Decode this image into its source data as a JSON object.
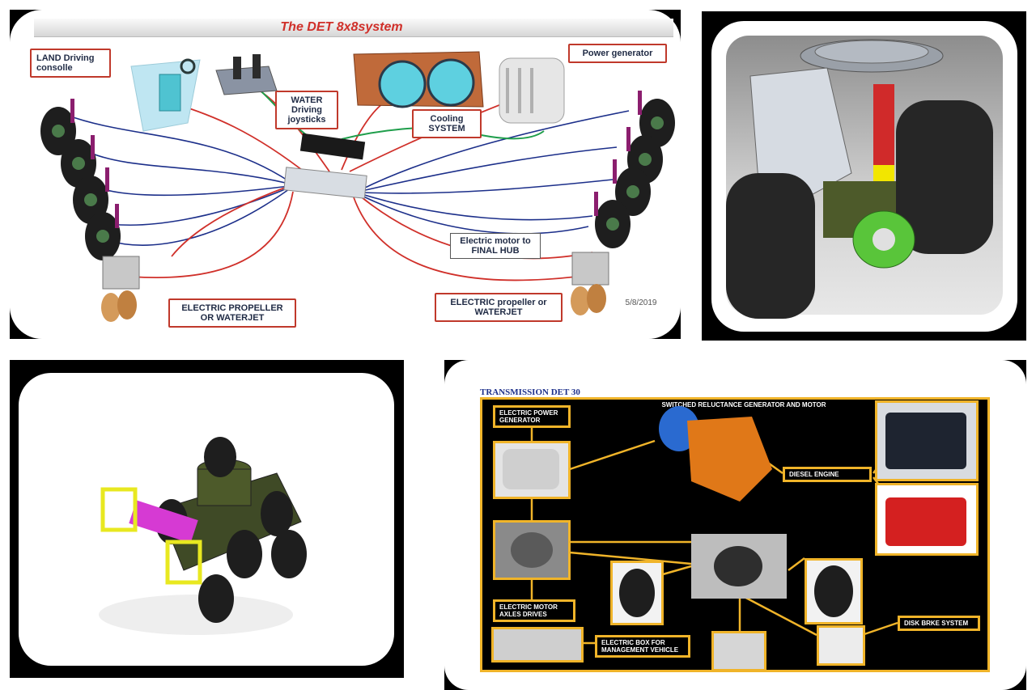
{
  "panel1": {
    "title": "The DET 8x8system",
    "labels": {
      "land": "LAND Driving consolle",
      "water": "WATER Driving joysticks",
      "cooling": "Cooling SYSTEM",
      "power": "Power generator",
      "motor": "Electric motor to FINAL HUB",
      "prop_left": "ELECTRIC PROPELLER OR WATERJET",
      "prop_right": "ELECTRIC propeller or WATERJET"
    },
    "date": "5/8/2019"
  },
  "panel4": {
    "title": "TRANSMISSION DET 30",
    "header": "SWITCHED RELUCTANCE GENERATOR AND MOTOR",
    "labels": {
      "power_gen": "ELECTRIC POWER GENERATOR",
      "diesel": "DIESEL ENGINE",
      "motor_axles": "ELECTRIC MOTOR AXLES DRIVES",
      "ebox": "ELECTRIC BOX FOR MANAGEMENT VEHICLE",
      "disk": "DISK BRKE SYSTEM"
    }
  },
  "colors": {
    "frame": "#000000",
    "accent_yellow": "#f0b429",
    "label_red": "#c0392b",
    "cable_blue": "#1c2f8a",
    "cable_red": "#d0302a",
    "cable_green": "#1f9e4b"
  }
}
